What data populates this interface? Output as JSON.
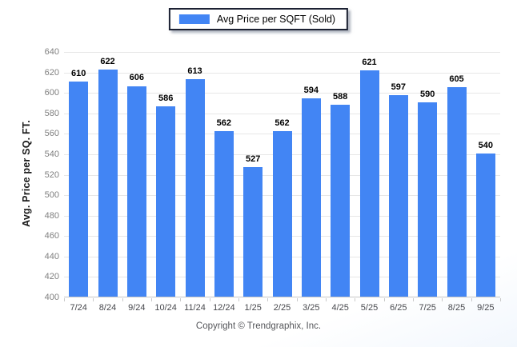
{
  "legend": {
    "label": "Avg Price per SQFT (Sold)",
    "swatch_color": "#4285F4"
  },
  "chart_data": {
    "type": "bar",
    "title": "",
    "series_name": "Avg Price per SQFT (Sold)",
    "categories": [
      "7/24",
      "8/24",
      "9/24",
      "10/24",
      "11/24",
      "12/24",
      "1/25",
      "2/25",
      "3/25",
      "4/25",
      "5/25",
      "6/25",
      "7/25",
      "8/25",
      "9/25"
    ],
    "values": [
      610,
      622,
      606,
      586,
      613,
      562,
      527,
      562,
      594,
      588,
      621,
      597,
      590,
      605,
      540
    ],
    "xlabel": "",
    "ylabel": "Avg. Price per SQ. FT.",
    "ylim": [
      400,
      640
    ],
    "ytick_step": 20,
    "grid": true,
    "legend_position": "top-center",
    "bar_color": "#4285F4",
    "value_labels_shown": true
  },
  "footer": {
    "copyright": "Copyright © Trendgraphix, Inc."
  }
}
